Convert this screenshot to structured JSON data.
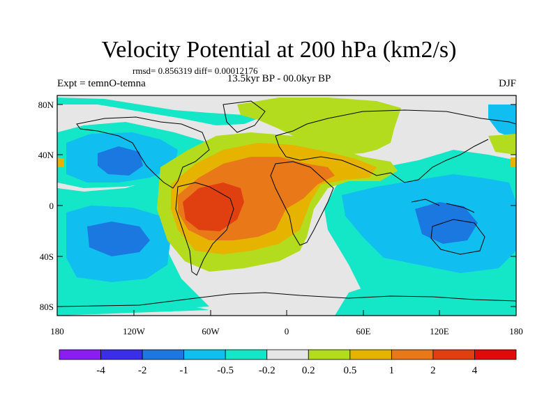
{
  "title": "Velocity Potential at 200 hPa (km2/s)",
  "stats_line": "rmsd= 0.856319 diff= 0.00012176",
  "left_label": "Expt = temnO-temna",
  "center_label": "13.5kyr BP - 00.0kyr BP",
  "right_label": "DJF",
  "axis": {
    "lat_ticks": [
      "80N",
      "40N",
      "0",
      "40S",
      "80S"
    ],
    "lon_ticks": [
      "180",
      "120W",
      "60W",
      "0",
      "60E",
      "120E",
      "180"
    ]
  },
  "colorbar": {
    "labels": [
      "-4",
      "-2",
      "-1",
      "-0.5",
      "-0.2",
      "0.2",
      "0.5",
      "1",
      "2",
      "4"
    ],
    "colors": [
      "#8a1ef0",
      "#3a2ee6",
      "#1a78e0",
      "#10bff0",
      "#14e6c8",
      "#e6e6e6",
      "#b4dc1e",
      "#e6b400",
      "#e87818",
      "#e04010",
      "#e00a0a"
    ]
  },
  "map_colors": {
    "ocean": "#e6e6e6",
    "coast": "#000000"
  }
}
